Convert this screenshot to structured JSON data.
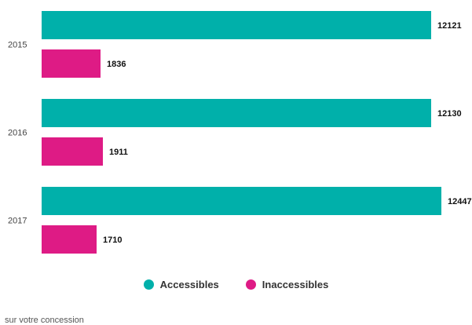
{
  "chart_data": {
    "type": "bar",
    "orientation": "horizontal",
    "categories": [
      "2015",
      "2016",
      "2017"
    ],
    "series": [
      {
        "name": "Accessibles",
        "color": "#00b0aa",
        "values": [
          12121,
          12130,
          12447
        ]
      },
      {
        "name": "Inaccessibles",
        "color": "#de1b85",
        "values": [
          1836,
          1911,
          1710
        ]
      }
    ],
    "title": "",
    "xlabel": "",
    "ylabel": "",
    "xlim": [
      0,
      12447
    ],
    "grid": false,
    "legend_position": "bottom"
  },
  "footnote": "sur votre concession"
}
